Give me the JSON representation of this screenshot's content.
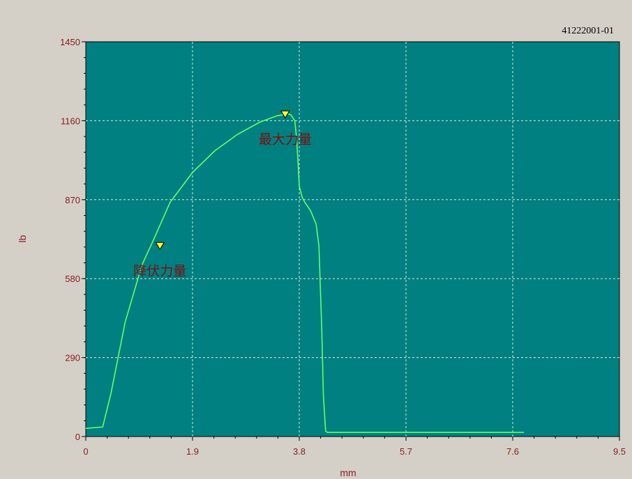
{
  "chart_data": {
    "type": "line",
    "title": "",
    "subtitle": "41222001-01",
    "xlabel": "mm",
    "ylabel": "lb",
    "xlim": [
      0,
      9.5
    ],
    "ylim": [
      0,
      1450
    ],
    "x_ticks": [
      "0",
      "1.9",
      "3.8",
      "5.7",
      "7.6",
      "9.5"
    ],
    "y_ticks": [
      "0",
      "290",
      "580",
      "870",
      "1160",
      "1450"
    ],
    "grid": true,
    "series": [
      {
        "x": [
          0,
          0.3,
          0.45,
          0.7,
          1.0,
          1.2,
          1.5,
          1.9,
          2.3,
          2.7,
          3.1,
          3.4,
          3.6,
          3.65,
          3.72,
          3.75,
          3.78,
          3.8,
          3.85,
          3.9,
          4.0,
          4.1,
          4.15,
          4.2,
          4.23,
          4.27,
          4.3,
          7.8
        ],
        "y": [
          30,
          35,
          160,
          420,
          630,
          720,
          860,
          970,
          1050,
          1110,
          1155,
          1178,
          1185,
          1182,
          1160,
          1100,
          1000,
          920,
          880,
          860,
          830,
          780,
          700,
          400,
          150,
          20,
          15,
          15
        ]
      }
    ],
    "annotations": [
      {
        "label": "降伏力量",
        "x": 1.32,
        "y": 700
      },
      {
        "label": "最大力量",
        "x": 3.55,
        "y": 1183
      }
    ],
    "colors": {
      "background": "#d4d0c8",
      "plot_background": "#008080",
      "line": "#66ff66",
      "grid": "#e6e6e6",
      "text": "#8b1a1a",
      "marker": "#ffff33"
    }
  }
}
